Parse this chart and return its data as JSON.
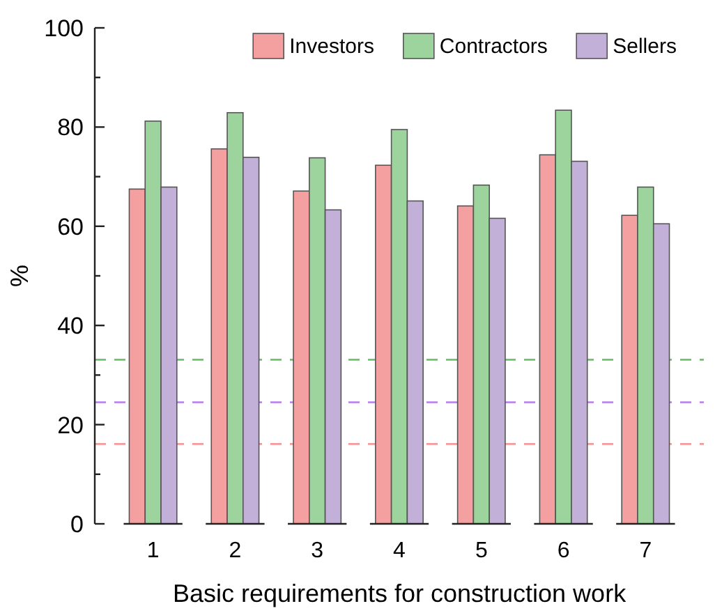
{
  "chart_data": {
    "type": "bar",
    "xlabel": "Basic requirements for construction work",
    "ylabel": "%",
    "categories": [
      "1",
      "2",
      "3",
      "4",
      "5",
      "6",
      "7"
    ],
    "series": [
      {
        "name": "Investors",
        "color": "#f4a0a0",
        "values": [
          67.5,
          75.6,
          67.1,
          72.3,
          64.1,
          74.4,
          62.2
        ]
      },
      {
        "name": "Contractors",
        "color": "#9dd49d",
        "values": [
          81.2,
          82.9,
          73.8,
          79.5,
          68.3,
          83.4,
          67.9
        ]
      },
      {
        "name": "Sellers",
        "color": "#c2b0d8",
        "values": [
          67.9,
          73.9,
          63.3,
          65.1,
          61.6,
          73.1,
          60.5
        ]
      }
    ],
    "ylim": [
      0,
      100
    ],
    "yticks": [
      0,
      {
        "value": 10,
        "label": null
      },
      20,
      {
        "value": 30,
        "label": null
      },
      40,
      {
        "value": 50,
        "label": null
      },
      60,
      {
        "value": 70,
        "label": null
      },
      80,
      {
        "value": 90,
        "label": null
      },
      100
    ],
    "ref_lines": [
      {
        "axis": "y",
        "value": 33.1,
        "color": "#6cc46c",
        "line_style": "dashed"
      },
      {
        "axis": "y",
        "value": 24.5,
        "color": "#b77cf0",
        "line_style": "dashed"
      },
      {
        "axis": "y",
        "value": 16.1,
        "color": "#f59a9a",
        "line_style": "dashed"
      }
    ],
    "legend": "top right",
    "grid": false
  }
}
